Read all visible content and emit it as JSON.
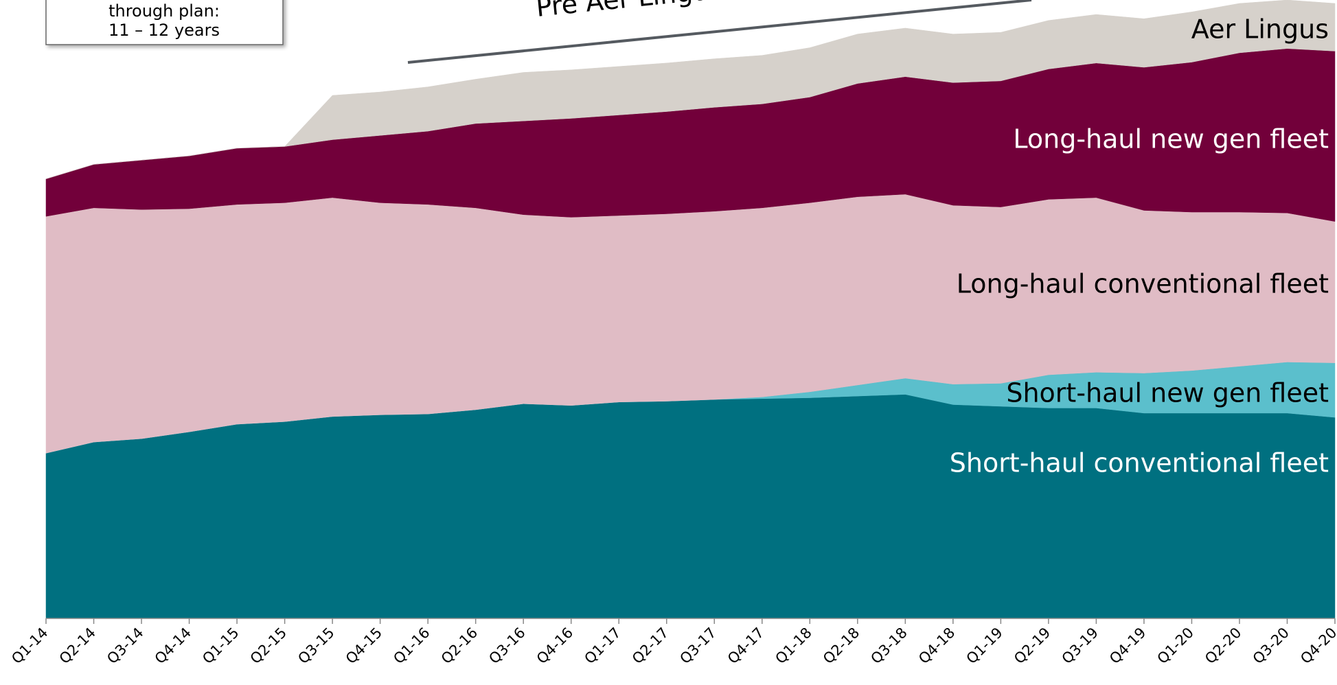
{
  "chart_data": {
    "type": "stacked_area",
    "annotation_box": [
      "through plan:",
      "11 – 12 years"
    ],
    "annotation": "Pre Aer Lingus",
    "categories": [
      "Q1-14",
      "Q2-14",
      "Q3-14",
      "Q4-14",
      "Q1-15",
      "Q2-15",
      "Q3-15",
      "Q4-15",
      "Q1-16",
      "Q2-16",
      "Q3-16",
      "Q4-16",
      "Q1-17",
      "Q2-17",
      "Q3-17",
      "Q4-17",
      "Q1-18",
      "Q2-18",
      "Q3-18",
      "Q4-18",
      "Q1-19",
      "Q2-19",
      "Q3-19",
      "Q4-19",
      "Q1-20",
      "Q2-20",
      "Q3-20",
      "Q4-20"
    ],
    "ylim": [
      0,
      726
    ],
    "series": [
      {
        "name": "Short-haul conventional fleet",
        "color": "#007080",
        "label_color": "#ffffff",
        "values": [
          194,
          207,
          211,
          219,
          228,
          231,
          237,
          239,
          240,
          245,
          252,
          250,
          254,
          255,
          257,
          258,
          259,
          261,
          263,
          251,
          249,
          247,
          247,
          241,
          241,
          241,
          241,
          236
        ]
      },
      {
        "name": "Short-haul new gen fleet",
        "color": "#5bbfcc",
        "label_color": "#000000",
        "values": [
          0,
          0,
          0,
          0,
          0,
          0,
          0,
          0,
          0,
          0,
          0,
          0,
          0,
          0,
          0,
          2,
          7,
          13,
          19,
          24,
          27,
          39,
          42,
          47,
          50,
          55,
          60,
          64
        ]
      },
      {
        "name": "Long-haul conventional fleet",
        "color": "#e0bcc5",
        "label_color": "#000000",
        "values": [
          278,
          275,
          269,
          262,
          258,
          257,
          257,
          249,
          246,
          237,
          222,
          221,
          219,
          220,
          221,
          222,
          222,
          221,
          216,
          210,
          207,
          206,
          205,
          191,
          186,
          181,
          175,
          166
        ]
      },
      {
        "name": "Long-haul new gen fleet",
        "color": "#72003a",
        "label_color": "#ffffff",
        "values": [
          44,
          51,
          58,
          62,
          66,
          66,
          68,
          79,
          86,
          99,
          110,
          116,
          118,
          120,
          122,
          122,
          124,
          133,
          138,
          144,
          148,
          153,
          158,
          168,
          176,
          187,
          193,
          200
        ]
      },
      {
        "name": "Aer Lingus",
        "color": "#d6d1cb",
        "label_color": "#000000",
        "values": [
          0,
          0,
          0,
          0,
          0,
          0,
          52,
          51,
          52,
          52,
          57,
          57,
          57,
          57,
          57,
          57,
          58,
          58,
          57,
          57,
          57,
          57,
          57,
          57,
          59,
          58,
          57,
          56
        ]
      }
    ]
  }
}
